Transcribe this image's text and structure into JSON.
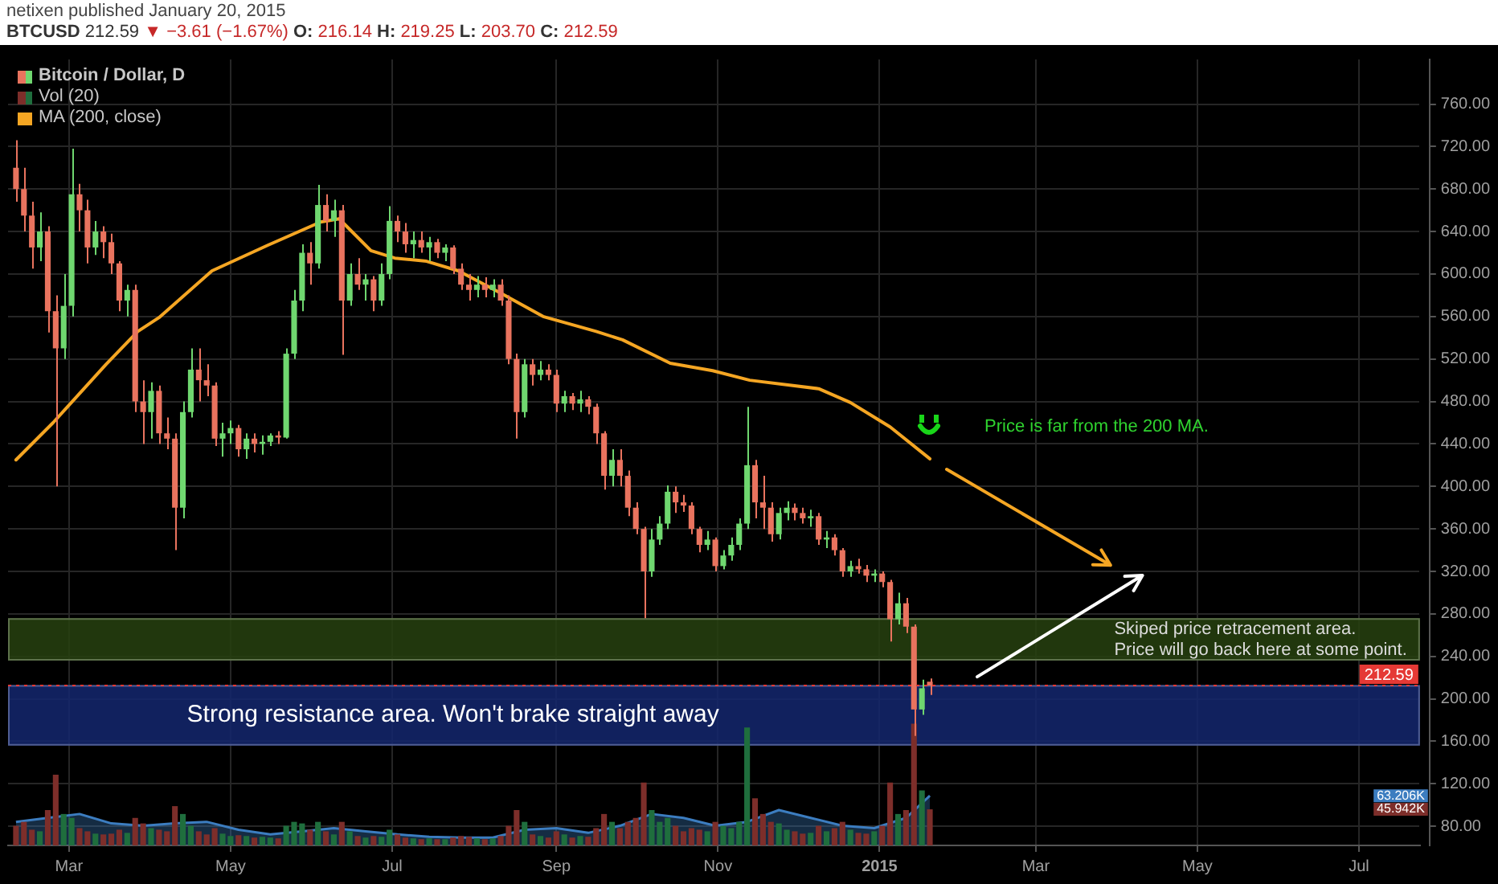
{
  "chart_data": {
    "type": "candlestick",
    "title": "netixen published January 20, 2015",
    "subtitle": "BTCUSD 212.59 ▼ −3.61 (−1.67%) O: 216.14 H: 219.25 L: 203.70 C: 212.59",
    "x": [
      "2014-02-09",
      "2014-02-12",
      "2014-02-15",
      "2014-02-18",
      "2014-02-21",
      "2014-02-24",
      "2014-02-27",
      "2014-03-02",
      "2014-03-05",
      "2014-03-08",
      "2014-03-11",
      "2014-03-14",
      "2014-03-17",
      "2014-03-20",
      "2014-03-23",
      "2014-03-26",
      "2014-03-29",
      "2014-04-01",
      "2014-04-04",
      "2014-04-07",
      "2014-04-10",
      "2014-04-13",
      "2014-04-16",
      "2014-04-19",
      "2014-04-22",
      "2014-04-25",
      "2014-04-28",
      "2014-05-01",
      "2014-05-04",
      "2014-05-07",
      "2014-05-10",
      "2014-05-13",
      "2014-05-16",
      "2014-05-19",
      "2014-05-22",
      "2014-05-25",
      "2014-05-28",
      "2014-05-31",
      "2014-06-03",
      "2014-06-06",
      "2014-06-09",
      "2014-06-12",
      "2014-06-15",
      "2014-06-18",
      "2014-06-21",
      "2014-06-24",
      "2014-06-27",
      "2014-06-30",
      "2014-07-03",
      "2014-07-06",
      "2014-07-09",
      "2014-07-12",
      "2014-07-15",
      "2014-07-18",
      "2014-07-21",
      "2014-07-24",
      "2014-07-27",
      "2014-07-30",
      "2014-08-02",
      "2014-08-05",
      "2014-08-08",
      "2014-08-11",
      "2014-08-14",
      "2014-08-17",
      "2014-08-20",
      "2014-08-23",
      "2014-08-26",
      "2014-08-29",
      "2014-09-01",
      "2014-09-04",
      "2014-09-07",
      "2014-09-10",
      "2014-09-13",
      "2014-09-16",
      "2014-09-19",
      "2014-09-22",
      "2014-09-25",
      "2014-09-28",
      "2014-10-01",
      "2014-10-04",
      "2014-10-07",
      "2014-10-10",
      "2014-10-13",
      "2014-10-16",
      "2014-10-19",
      "2014-10-22",
      "2014-10-25",
      "2014-10-28",
      "2014-10-31",
      "2014-11-03",
      "2014-11-06",
      "2014-11-09",
      "2014-11-12",
      "2014-11-15",
      "2014-11-18",
      "2014-11-21",
      "2014-11-24",
      "2014-11-27",
      "2014-11-30",
      "2014-12-03",
      "2014-12-06",
      "2014-12-09",
      "2014-12-12",
      "2014-12-15",
      "2014-12-18",
      "2014-12-21",
      "2014-12-24",
      "2014-12-27",
      "2014-12-30",
      "2015-01-02",
      "2015-01-05",
      "2015-01-08",
      "2015-01-11",
      "2015-01-14",
      "2015-01-17",
      "2015-01-20"
    ],
    "xlim": [
      "2014-02-06",
      "2015-07-24"
    ],
    "xticks": [
      {
        "value": "2014-03-01",
        "label": "Mar"
      },
      {
        "value": "2014-05-01",
        "label": "May"
      },
      {
        "value": "2014-07-01",
        "label": "Jul"
      },
      {
        "value": "2014-09-01",
        "label": "Sep"
      },
      {
        "value": "2014-11-01",
        "label": "Nov"
      },
      {
        "value": "2015-01-01",
        "label": "2015"
      },
      {
        "value": "2015-03-01",
        "label": "Mar"
      },
      {
        "value": "2015-05-01",
        "label": "May"
      },
      {
        "value": "2015-07-01",
        "label": "Jul"
      }
    ],
    "ylim": [
      62,
      802
    ],
    "yticks": [
      {
        "value": 80,
        "label": "80.00"
      },
      {
        "value": 120,
        "label": "120.00"
      },
      {
        "value": 160,
        "label": "160.00"
      },
      {
        "value": 200,
        "label": "200.00"
      },
      {
        "value": 240,
        "label": "240.00"
      },
      {
        "value": 280,
        "label": "280.00"
      },
      {
        "value": 320,
        "label": "320.00"
      },
      {
        "value": 360,
        "label": "360.00"
      },
      {
        "value": 400,
        "label": "400.00"
      },
      {
        "value": 440,
        "label": "440.00"
      },
      {
        "value": 480,
        "label": "480.00"
      },
      {
        "value": 520,
        "label": "520.00"
      },
      {
        "value": 560,
        "label": "560.00"
      },
      {
        "value": 600,
        "label": "600.00"
      },
      {
        "value": 640,
        "label": "640.00"
      },
      {
        "value": 680,
        "label": "680.00"
      },
      {
        "value": 720,
        "label": "720.00"
      },
      {
        "value": 760,
        "label": "760.00"
      }
    ],
    "y2lim": [
      0,
      1000000
    ],
    "y2ticks": [
      {
        "value": 45942,
        "label": "45.942K"
      },
      {
        "value": 63206,
        "label": "63.206K"
      }
    ],
    "series": [
      {
        "name": "Bitcoin / Dollar, D",
        "ohlc": [
          [
            700,
            726,
            668,
            680
          ],
          [
            680,
            700,
            640,
            655
          ],
          [
            655,
            668,
            605,
            625
          ],
          [
            625,
            658,
            612,
            640
          ],
          [
            640,
            645,
            545,
            565
          ],
          [
            565,
            580,
            400,
            530
          ],
          [
            530,
            600,
            520,
            570
          ],
          [
            570,
            718,
            560,
            675
          ],
          [
            675,
            685,
            640,
            660
          ],
          [
            660,
            670,
            610,
            625
          ],
          [
            625,
            650,
            618,
            640
          ],
          [
            640,
            645,
            615,
            630
          ],
          [
            630,
            638,
            600,
            610
          ],
          [
            610,
            612,
            565,
            575
          ],
          [
            575,
            590,
            560,
            585
          ],
          [
            585,
            590,
            470,
            480
          ],
          [
            480,
            500,
            440,
            470
          ],
          [
            470,
            498,
            445,
            490
          ],
          [
            490,
            495,
            440,
            450
          ],
          [
            450,
            465,
            435,
            445
          ],
          [
            445,
            450,
            340,
            380
          ],
          [
            380,
            480,
            370,
            470
          ],
          [
            470,
            530,
            465,
            510
          ],
          [
            510,
            530,
            480,
            500
          ],
          [
            500,
            515,
            485,
            495
          ],
          [
            495,
            498,
            438,
            445
          ],
          [
            445,
            460,
            428,
            450
          ],
          [
            450,
            462,
            440,
            455
          ],
          [
            455,
            458,
            428,
            435
          ],
          [
            435,
            450,
            426,
            445
          ],
          [
            445,
            450,
            432,
            440
          ],
          [
            440,
            448,
            430,
            442
          ],
          [
            442,
            450,
            438,
            448
          ],
          [
            448,
            452,
            440,
            446
          ],
          [
            446,
            530,
            445,
            525
          ],
          [
            525,
            585,
            520,
            575
          ],
          [
            575,
            628,
            565,
            620
          ],
          [
            620,
            630,
            590,
            610
          ],
          [
            610,
            684,
            605,
            665
          ],
          [
            665,
            675,
            640,
            650
          ],
          [
            650,
            670,
            635,
            660
          ],
          [
            660,
            665,
            524,
            575
          ],
          [
            575,
            610,
            570,
            600
          ],
          [
            600,
            615,
            585,
            590
          ],
          [
            590,
            600,
            575,
            595
          ],
          [
            595,
            598,
            565,
            575
          ],
          [
            575,
            610,
            570,
            600
          ],
          [
            600,
            664,
            595,
            650
          ],
          [
            650,
            655,
            630,
            640
          ],
          [
            640,
            648,
            620,
            628
          ],
          [
            628,
            640,
            615,
            632
          ],
          [
            632,
            640,
            620,
            625
          ],
          [
            625,
            635,
            612,
            630
          ],
          [
            630,
            633,
            615,
            620
          ],
          [
            620,
            628,
            612,
            625
          ],
          [
            625,
            627,
            600,
            605
          ],
          [
            605,
            610,
            585,
            590
          ],
          [
            590,
            600,
            575,
            585
          ],
          [
            585,
            598,
            578,
            590
          ],
          [
            590,
            597,
            578,
            585
          ],
          [
            585,
            595,
            578,
            590
          ],
          [
            590,
            595,
            570,
            575
          ],
          [
            575,
            580,
            515,
            520
          ],
          [
            520,
            525,
            445,
            470
          ],
          [
            470,
            520,
            465,
            515
          ],
          [
            515,
            520,
            495,
            505
          ],
          [
            505,
            518,
            500,
            510
          ],
          [
            510,
            515,
            500,
            505
          ],
          [
            505,
            510,
            470,
            478
          ],
          [
            478,
            490,
            470,
            485
          ],
          [
            485,
            488,
            472,
            478
          ],
          [
            478,
            490,
            470,
            482
          ],
          [
            482,
            485,
            468,
            475
          ],
          [
            475,
            478,
            440,
            450
          ],
          [
            450,
            452,
            397,
            410
          ],
          [
            410,
            435,
            400,
            425
          ],
          [
            425,
            435,
            400,
            410
          ],
          [
            410,
            415,
            372,
            380
          ],
          [
            380,
            385,
            355,
            360
          ],
          [
            360,
            362,
            276,
            320
          ],
          [
            320,
            360,
            315,
            350
          ],
          [
            350,
            372,
            345,
            365
          ],
          [
            365,
            401,
            360,
            395
          ],
          [
            395,
            400,
            375,
            385
          ],
          [
            385,
            392,
            376,
            382
          ],
          [
            382,
            385,
            355,
            360
          ],
          [
            360,
            362,
            338,
            345
          ],
          [
            345,
            358,
            340,
            350
          ],
          [
            350,
            352,
            320,
            325
          ],
          [
            325,
            340,
            322,
            335
          ],
          [
            335,
            352,
            330,
            345
          ],
          [
            345,
            370,
            340,
            365
          ],
          [
            365,
            475,
            360,
            420
          ],
          [
            420,
            425,
            370,
            385
          ],
          [
            385,
            410,
            360,
            380
          ],
          [
            380,
            385,
            348,
            355
          ],
          [
            355,
            380,
            350,
            375
          ],
          [
            375,
            386,
            368,
            380
          ],
          [
            380,
            384,
            368,
            375
          ],
          [
            375,
            380,
            365,
            370
          ],
          [
            370,
            378,
            362,
            372
          ],
          [
            372,
            375,
            345,
            350
          ],
          [
            350,
            358,
            342,
            352
          ],
          [
            352,
            355,
            335,
            340
          ],
          [
            340,
            342,
            315,
            320
          ],
          [
            320,
            330,
            315,
            325
          ],
          [
            325,
            332,
            318,
            322
          ],
          [
            322,
            326,
            310,
            316
          ],
          [
            316,
            322,
            310,
            318
          ],
          [
            318,
            320,
            305,
            310
          ],
          [
            310,
            312,
            254,
            275
          ],
          [
            275,
            300,
            270,
            290
          ],
          [
            290,
            295,
            262,
            268
          ],
          [
            268,
            270,
            165,
            190
          ],
          [
            190,
            218,
            185,
            210
          ],
          [
            216.14,
            219.25,
            203.7,
            212.59
          ]
        ],
        "colors": [
          "#e9735e",
          "#e9735e",
          "#e9735e",
          "#6fd76f",
          "#e9735e",
          "#e9735e",
          "#6fd76f",
          "#6fd76f",
          "#e9735e",
          "#e9735e",
          "#6fd76f",
          "#e9735e",
          "#e9735e",
          "#e9735e",
          "#6fd76f",
          "#e9735e",
          "#e9735e",
          "#6fd76f",
          "#e9735e",
          "#e9735e",
          "#e9735e",
          "#6fd76f",
          "#6fd76f",
          "#e9735e",
          "#e9735e",
          "#e9735e",
          "#6fd76f",
          "#6fd76f",
          "#e9735e",
          "#6fd76f",
          "#e9735e",
          "#6fd76f",
          "#6fd76f",
          "#e9735e",
          "#6fd76f",
          "#6fd76f",
          "#6fd76f",
          "#e9735e",
          "#6fd76f",
          "#e9735e",
          "#6fd76f",
          "#e9735e",
          "#6fd76f",
          "#e9735e",
          "#6fd76f",
          "#e9735e",
          "#6fd76f",
          "#6fd76f",
          "#e9735e",
          "#e9735e",
          "#6fd76f",
          "#e9735e",
          "#6fd76f",
          "#e9735e",
          "#6fd76f",
          "#e9735e",
          "#e9735e",
          "#e9735e",
          "#6fd76f",
          "#e9735e",
          "#6fd76f",
          "#e9735e",
          "#e9735e",
          "#e9735e",
          "#6fd76f",
          "#e9735e",
          "#6fd76f",
          "#e9735e",
          "#e9735e",
          "#6fd76f",
          "#e9735e",
          "#6fd76f",
          "#e9735e",
          "#e9735e",
          "#e9735e",
          "#6fd76f",
          "#e9735e",
          "#e9735e",
          "#e9735e",
          "#e9735e",
          "#6fd76f",
          "#6fd76f",
          "#6fd76f",
          "#e9735e",
          "#e9735e",
          "#e9735e",
          "#e9735e",
          "#6fd76f",
          "#e9735e",
          "#6fd76f",
          "#6fd76f",
          "#6fd76f",
          "#6fd76f",
          "#e9735e",
          "#e9735e",
          "#e9735e",
          "#6fd76f",
          "#6fd76f",
          "#e9735e",
          "#e9735e",
          "#6fd76f",
          "#e9735e",
          "#6fd76f",
          "#e9735e",
          "#e9735e",
          "#6fd76f",
          "#e9735e",
          "#e9735e",
          "#6fd76f",
          "#e9735e",
          "#e9735e",
          "#6fd76f",
          "#e9735e",
          "#e9735e",
          "#6fd76f",
          "#e9735e"
        ]
      },
      {
        "name": "Vol (20)",
        "type": "bar",
        "axis": "y2",
        "values": [
          25000,
          30000,
          20000,
          18000,
          45000,
          90000,
          40000,
          35000,
          22000,
          18000,
          15000,
          14000,
          15000,
          20000,
          16000,
          35000,
          28000,
          22000,
          20000,
          18000,
          50000,
          40000,
          25000,
          18000,
          14000,
          22000,
          15000,
          12000,
          13000,
          12000,
          10000,
          11000,
          10000,
          9000,
          25000,
          30000,
          28000,
          20000,
          30000,
          18000,
          14000,
          30000,
          18000,
          12000,
          10000,
          12000,
          11000,
          20000,
          14000,
          10000,
          9000,
          8000,
          9000,
          8000,
          8000,
          10000,
          12000,
          11000,
          9000,
          8000,
          9000,
          12000,
          25000,
          45000,
          30000,
          14000,
          12000,
          10000,
          18000,
          14000,
          10000,
          12000,
          11000,
          22000,
          40000,
          30000,
          22000,
          30000,
          35000,
          80000,
          45000,
          30000,
          35000,
          25000,
          18000,
          22000,
          20000,
          18000,
          30000,
          25000,
          22000,
          30000,
          150000,
          60000,
          40000,
          30000,
          28000,
          20000,
          18000,
          15000,
          16000,
          25000,
          18000,
          22000,
          30000,
          20000,
          16000,
          15000,
          18000,
          25000,
          80000,
          40000,
          45000,
          155000,
          70000,
          45942
        ],
        "colors": [
          "#7d2e2a",
          "#7d2e2a",
          "#7d2e2a",
          "#1f6e3d",
          "#7d2e2a",
          "#7d2e2a",
          "#1f6e3d",
          "#1f6e3d",
          "#7d2e2a",
          "#7d2e2a",
          "#1f6e3d",
          "#7d2e2a",
          "#7d2e2a",
          "#7d2e2a",
          "#1f6e3d",
          "#7d2e2a",
          "#7d2e2a",
          "#1f6e3d",
          "#7d2e2a",
          "#7d2e2a",
          "#7d2e2a",
          "#1f6e3d",
          "#1f6e3d",
          "#7d2e2a",
          "#7d2e2a",
          "#7d2e2a",
          "#1f6e3d",
          "#1f6e3d",
          "#7d2e2a",
          "#1f6e3d",
          "#7d2e2a",
          "#1f6e3d",
          "#1f6e3d",
          "#7d2e2a",
          "#1f6e3d",
          "#1f6e3d",
          "#1f6e3d",
          "#7d2e2a",
          "#1f6e3d",
          "#7d2e2a",
          "#1f6e3d",
          "#7d2e2a",
          "#1f6e3d",
          "#7d2e2a",
          "#1f6e3d",
          "#7d2e2a",
          "#1f6e3d",
          "#1f6e3d",
          "#7d2e2a",
          "#7d2e2a",
          "#1f6e3d",
          "#7d2e2a",
          "#1f6e3d",
          "#7d2e2a",
          "#1f6e3d",
          "#7d2e2a",
          "#7d2e2a",
          "#7d2e2a",
          "#1f6e3d",
          "#7d2e2a",
          "#1f6e3d",
          "#7d2e2a",
          "#7d2e2a",
          "#7d2e2a",
          "#1f6e3d",
          "#7d2e2a",
          "#1f6e3d",
          "#7d2e2a",
          "#7d2e2a",
          "#1f6e3d",
          "#7d2e2a",
          "#1f6e3d",
          "#7d2e2a",
          "#7d2e2a",
          "#7d2e2a",
          "#1f6e3d",
          "#7d2e2a",
          "#7d2e2a",
          "#7d2e2a",
          "#7d2e2a",
          "#1f6e3d",
          "#1f6e3d",
          "#1f6e3d",
          "#7d2e2a",
          "#7d2e2a",
          "#7d2e2a",
          "#7d2e2a",
          "#1f6e3d",
          "#7d2e2a",
          "#1f6e3d",
          "#1f6e3d",
          "#1f6e3d",
          "#1f6e3d",
          "#7d2e2a",
          "#7d2e2a",
          "#7d2e2a",
          "#1f6e3d",
          "#1f6e3d",
          "#7d2e2a",
          "#7d2e2a",
          "#1f6e3d",
          "#7d2e2a",
          "#1f6e3d",
          "#7d2e2a",
          "#7d2e2a",
          "#1f6e3d",
          "#7d2e2a",
          "#7d2e2a",
          "#1f6e3d",
          "#7d2e2a",
          "#7d2e2a",
          "#1f6e3d",
          "#7d2e2a",
          "#7d2e2a",
          "#1f6e3d",
          "#7d2e2a"
        ]
      },
      {
        "type": "area",
        "axis": "y2",
        "color": "#3c7dc0",
        "x": [
          "2014-02-09",
          "2014-02-21",
          "2014-03-05",
          "2014-03-17",
          "2014-03-29",
          "2014-04-10",
          "2014-04-22",
          "2014-05-04",
          "2014-05-16",
          "2014-05-28",
          "2014-06-09",
          "2014-06-21",
          "2014-07-03",
          "2014-07-15",
          "2014-07-27",
          "2014-08-08",
          "2014-08-20",
          "2014-09-01",
          "2014-09-13",
          "2014-09-25",
          "2014-10-07",
          "2014-10-19",
          "2014-10-31",
          "2014-11-12",
          "2014-11-24",
          "2014-12-06",
          "2014-12-18",
          "2014-12-30",
          "2015-01-11",
          "2015-01-20"
        ],
        "values": [
          30000,
          35000,
          40000,
          28000,
          25000,
          28000,
          30000,
          20000,
          14000,
          18000,
          22000,
          18000,
          14000,
          11000,
          10000,
          10000,
          20000,
          22000,
          16000,
          25000,
          40000,
          35000,
          25000,
          30000,
          45000,
          35000,
          25000,
          22000,
          35000,
          63206
        ]
      },
      {
        "name": "MA (200, close)",
        "type": "line",
        "color": "#f5a623",
        "x": [
          "2014-02-09",
          "2014-02-23",
          "2014-03-15",
          "2014-03-27",
          "2014-04-04",
          "2014-04-24",
          "2014-05-15",
          "2014-06-04",
          "2014-06-11",
          "2014-06-23",
          "2014-07-02",
          "2014-07-14",
          "2014-07-26",
          "2014-08-11",
          "2014-08-27",
          "2014-09-16",
          "2014-09-26",
          "2014-10-14",
          "2014-10-30",
          "2014-11-13",
          "2014-12-09",
          "2014-12-21",
          "2015-01-05",
          "2015-01-20"
        ],
        "values": [
          425,
          460,
          515,
          546,
          559,
          603,
          627,
          649,
          652,
          622,
          615,
          612,
          603,
          582,
          560,
          546,
          538,
          516,
          509,
          500,
          492,
          479,
          456,
          426
        ]
      }
    ],
    "bands": [
      {
        "axis": "y",
        "from": 156,
        "to": 213,
        "color": "#14276e",
        "label": "Strong resistance area. Won't brake straight away"
      },
      {
        "axis": "y",
        "from": 236,
        "to": 276,
        "color": "#27410f",
        "label": "Skiped price retracement area.\nPrice will go back here at some point."
      }
    ],
    "ref_lines": [
      {
        "axis": "y",
        "value": 212.59,
        "label": "212.59",
        "color": "#e53935",
        "line_style": "dotted"
      }
    ],
    "annotations": [
      "Price is far from the 200 MA."
    ],
    "grid": true,
    "legend": "top left",
    "marker": "none"
  }
}
